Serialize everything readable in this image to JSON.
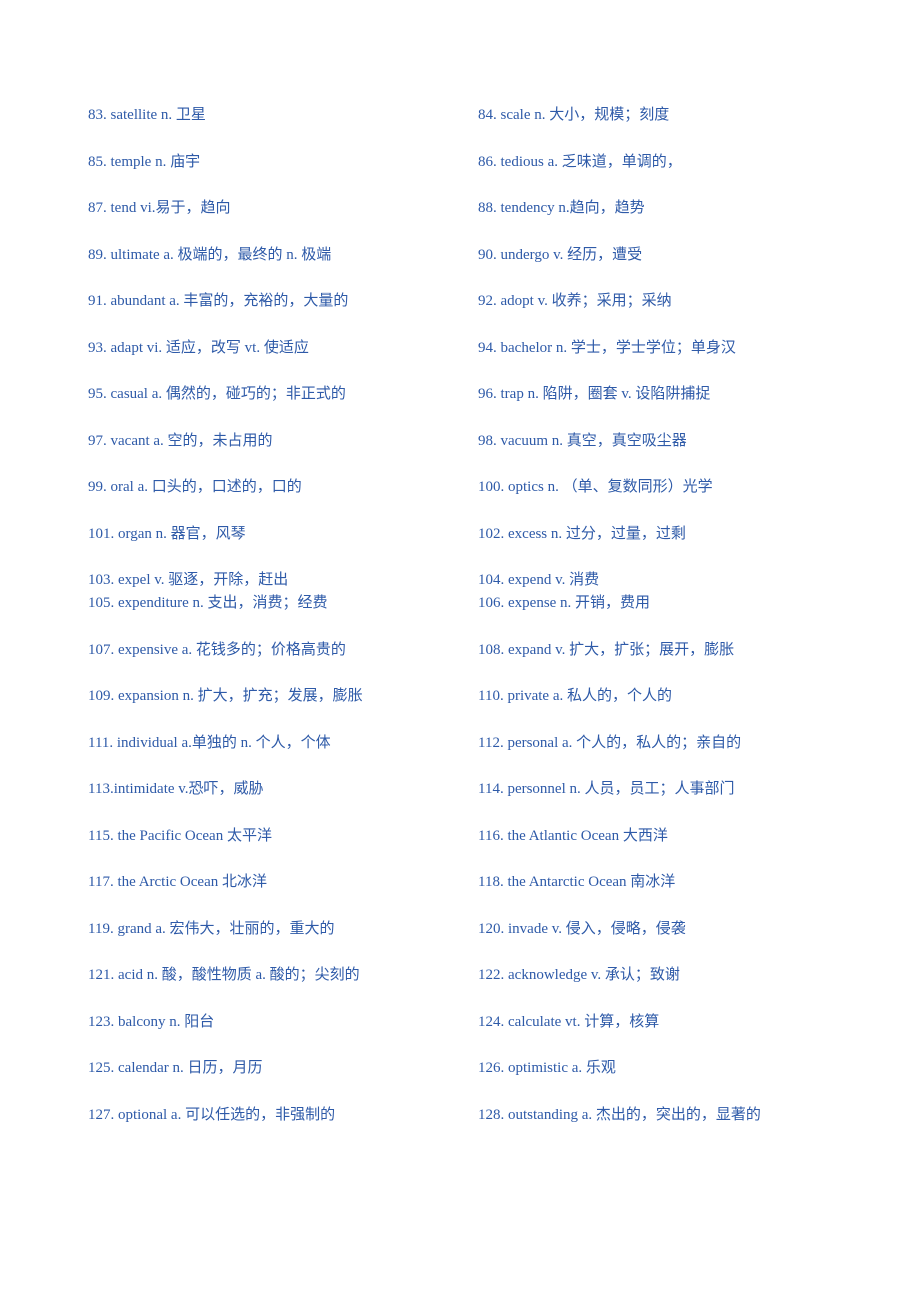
{
  "text_color": "#2e5aa8",
  "background_color": "#ffffff",
  "font_size": 15,
  "rows": [
    {
      "l": "83. satellite n.  卫星",
      "r": "84. scale n.  大小，规模；刻度"
    },
    {
      "l": "85. temple n.  庙宇",
      "r": "86. tedious a.  乏味道，单调的，"
    },
    {
      "l": "87. tend vi.易于，趋向",
      "r": "88. tendency n.趋向，趋势"
    },
    {
      "l": "89. ultimate a.  极端的，最终的  n.  极端",
      "r": "90. undergo v.  经历，遭受"
    },
    {
      "l": "91. abundant a.  丰富的，充裕的，大量的",
      "r": "92. adopt v.  收养；采用；采纳"
    },
    {
      "l": "93. adapt vi.  适应，改写  vt.  使适应",
      "r": "94. bachelor n.  学士，学士学位；单身汉"
    },
    {
      "l": "95. casual a.  偶然的，碰巧的；非正式的",
      "r": "96. trap n.  陷阱，圈套  v.  设陷阱捕捉"
    },
    {
      "l": "97. vacant a.  空的，未占用的",
      "r": "98. vacuum n.  真空，真空吸尘器"
    },
    {
      "l": "99. oral a.  口头的，口述的，口的",
      "r": "100. optics n.  （单、复数同形）光学"
    },
    {
      "l": "101. organ n.  器官，风琴",
      "r": "102. excess n.  过分，过量，过剩"
    },
    {
      "l": "103. expel v.  驱逐，开除，赶出",
      "r": "104. expend v.  消费",
      "tight": true
    },
    {
      "l": "105. expenditure n.  支出，消费；经费",
      "r": "106. expense n.  开销，费用"
    },
    {
      "l": "107. expensive a.  花钱多的；价格高贵的",
      "r": "108. expand v.  扩大，扩张；展开，膨胀"
    },
    {
      "l": "109. expansion n.  扩大，扩充；发展，膨胀",
      "r": "110. private a.  私人的，个人的"
    },
    {
      "l": "111. individual a.单独的  n.  个人，个体",
      "r": "112. personal a.  个人的，私人的；亲自的"
    },
    {
      "l": "113.intimidate v.恐吓，威胁",
      "r": "114. personnel n.  人员，员工；人事部门"
    },
    {
      "l": "115. the Pacific Ocean  太平洋",
      "r": "116. the Atlantic Ocean  大西洋"
    },
    {
      "l": "117. the Arctic Ocean  北冰洋",
      "r": "118. the Antarctic Ocean  南冰洋"
    },
    {
      "l": "119. grand a.  宏伟大，壮丽的，重大的",
      "r": "120. invade v.  侵入，侵略，侵袭"
    },
    {
      "l": "121. acid n.  酸，酸性物质  a.  酸的；尖刻的",
      "r": "122. acknowledge v.  承认；致谢"
    },
    {
      "l": "123. balcony n.  阳台",
      "r": "124. calculate vt.  计算，核算"
    },
    {
      "l": "125. calendar n.  日历，月历",
      "r": "126. optimistic a.  乐观"
    },
    {
      "l": "127. optional a.  可以任选的，非强制的",
      "r": "128. outstanding a.  杰出的，突出的，显著的"
    }
  ]
}
